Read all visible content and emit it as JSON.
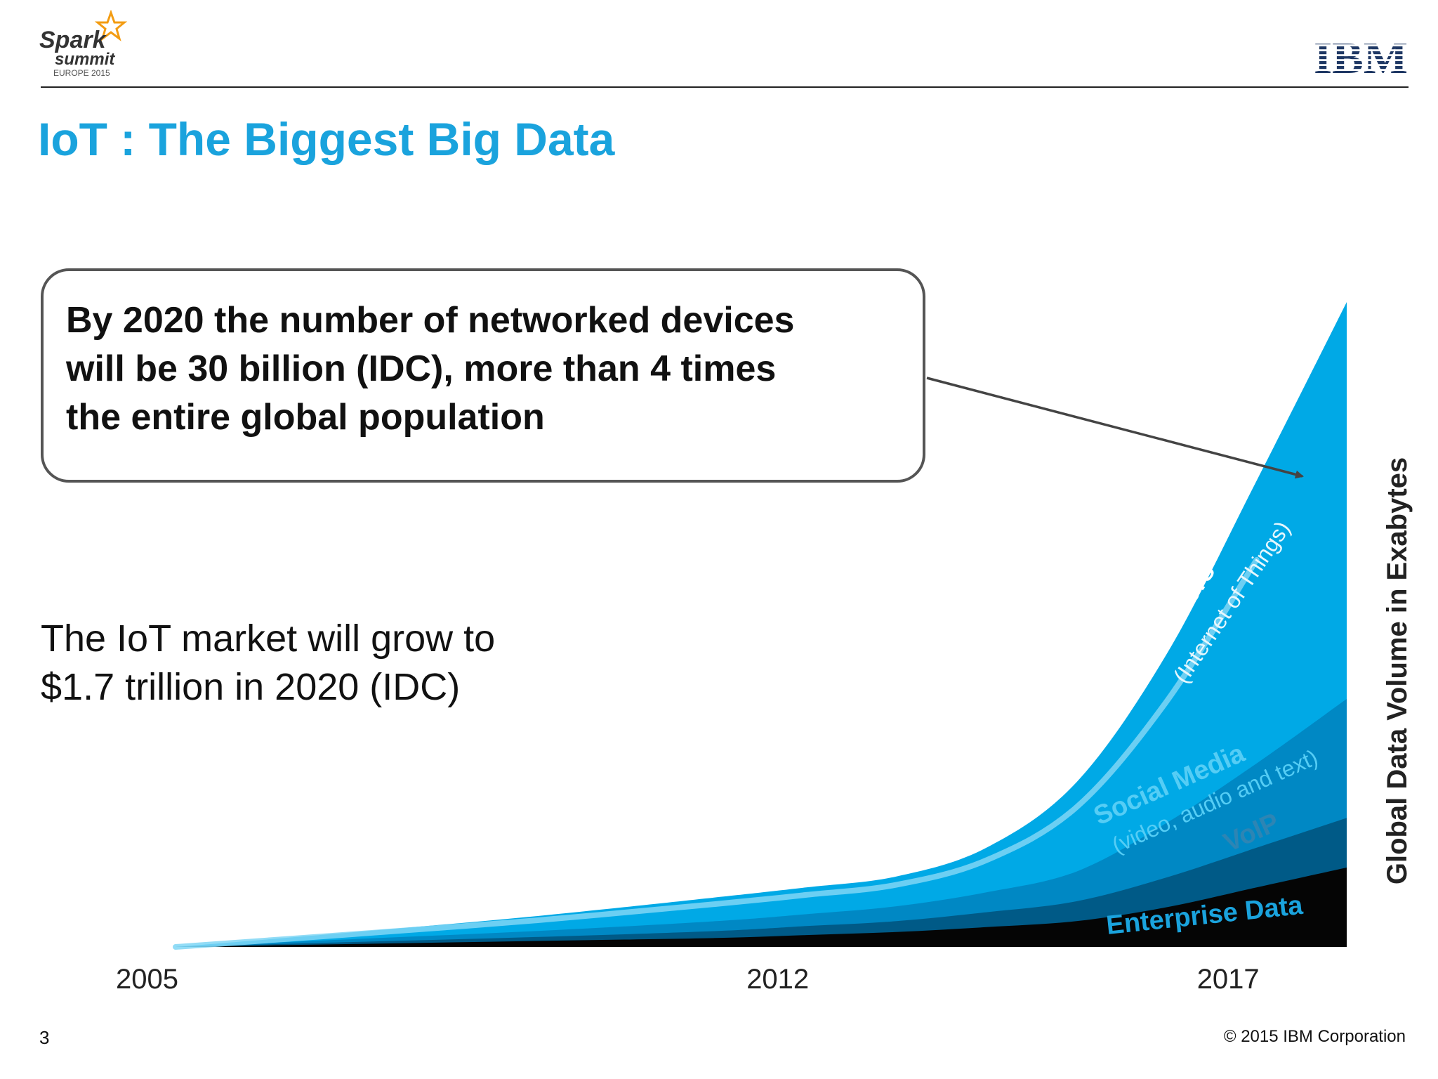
{
  "slide": {
    "title": "IoT : The Biggest Big Data",
    "callout_lines": [
      "By 2020 the number of networked devices",
      "will be 30 billion (IDC), more than 4 times",
      "the entire global population"
    ],
    "market_lines": [
      "The IoT market will grow to",
      "$1.7 trillion in 2020 (IDC)"
    ],
    "page_number": "3",
    "copyright": "© 2015 IBM Corporation"
  },
  "logos": {
    "spark": {
      "line1": "Spark",
      "line2": "summit",
      "line3": "EUROPE 2015",
      "accent": "#f39c12"
    },
    "ibm": {
      "text": "IBM",
      "color": "#1f3864"
    }
  },
  "colors": {
    "enterprise": "#050505",
    "voip": "#005a87",
    "social": "#0088c4",
    "sensors": "#00a9e6",
    "highlight": "#7fd6f5",
    "axis_text": "#222222"
  },
  "chart_data": {
    "type": "area",
    "x": [
      2005,
      2007,
      2009,
      2011,
      2012,
      2013,
      2014,
      2015,
      2016,
      2017,
      2018
    ],
    "xticks": [
      "2005",
      "2012",
      "2017"
    ],
    "ylabel": "Global Data Volume in Exabytes",
    "stacked": true,
    "grid": false,
    "series": [
      {
        "name": "Enterprise Data",
        "values": [
          0,
          3,
          6,
          9,
          12,
          15,
          20,
          26,
          40,
          60,
          80
        ]
      },
      {
        "name": "VoIP",
        "values": [
          0,
          2,
          4,
          7,
          9,
          11,
          15,
          20,
          30,
          40,
          50
        ]
      },
      {
        "name": "Social Media",
        "values": [
          0,
          3,
          6,
          10,
          12,
          15,
          20,
          30,
          55,
          85,
          120
        ]
      },
      {
        "name": "Sensors",
        "values": [
          0,
          7,
          15,
          24,
          27,
          30,
          45,
          90,
          170,
          285,
          400
        ]
      }
    ],
    "series_sublabels": {
      "Sensors": "(Internet of Things)",
      "Social Media": "(video, audio and text)"
    }
  }
}
